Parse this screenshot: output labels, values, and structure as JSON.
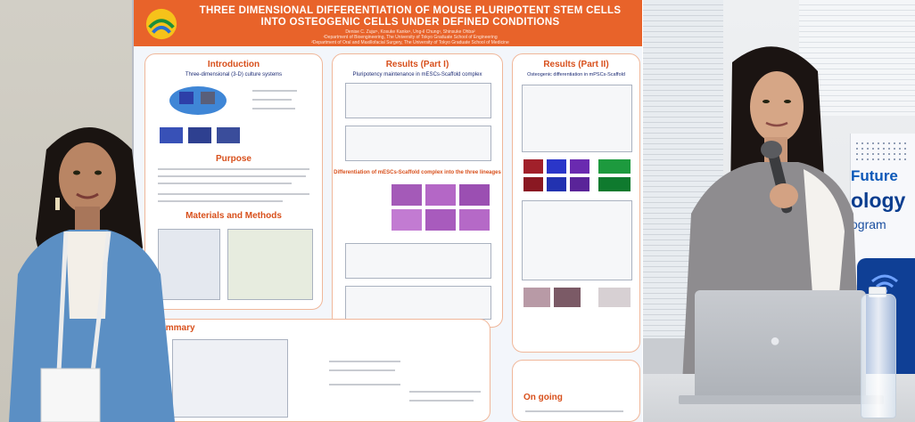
{
  "poster": {
    "title_line1": "THREE DIMENSIONAL DIFFERENTIATION OF  MOUSE PLURIPOTENT STEM CELLS",
    "title_line2": "INTO OSTEOGENIC CELLS UNDER DEFINED CONDITIONS",
    "authors": "Denise C. Zujur¹, Kosuke Kanke¹, Ung-il Chung¹, Shinsuke Ohba²",
    "affiliation1": "¹Department of Bioengineering, The University of Tokyo Graduate School of Engineering",
    "affiliation2": "²Department of Oral and Maxillofacial Surgery, The University of Tokyo Graduate School of Medicine",
    "sections": {
      "introduction": "Introduction",
      "introduction_sub": "Three-dimensional (3-D) culture systems",
      "purpose": "Purpose",
      "materials": "Materials and Methods",
      "summary": "Summary",
      "results1": "Results (Part I)",
      "results1_sub": "Pluripotency maintenance in mESCs-Scaffold complex",
      "results1_sub2": "Differentiation of mESCs-Scaffold complex into the three lineages",
      "results2": "Results (Part II)",
      "results2_sub": "Osteogenic differentiation in mPSCs-Scaffold",
      "ongoing": "On going"
    }
  },
  "banner": {
    "line1": "Future",
    "line2": "ology",
    "line3": "ogram"
  },
  "colors": {
    "poster_header": "#e8632a",
    "section_title": "#d8501c",
    "banner_text": "#0c58b8"
  }
}
